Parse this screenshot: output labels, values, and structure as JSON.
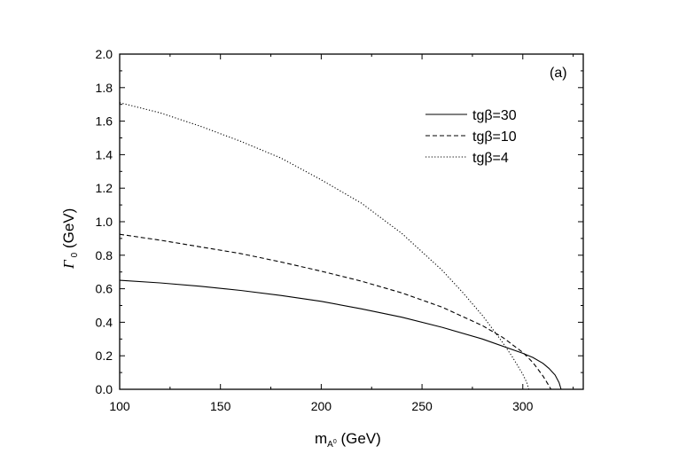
{
  "chart_data": {
    "type": "line",
    "panel_label": "(a)",
    "xlabel": {
      "main": "m",
      "subscript": "A",
      "superscript": "0",
      "unit": " (GeV)"
    },
    "ylabel": {
      "main": "Γ",
      "subscript": "0",
      "unit": " (GeV)"
    },
    "xlim": [
      100,
      330
    ],
    "ylim": [
      0.0,
      2.0
    ],
    "x_ticks": [
      100,
      150,
      200,
      250,
      300
    ],
    "x_tick_labels": [
      "100",
      "150",
      "200",
      "250",
      "300"
    ],
    "y_ticks": [
      0.0,
      0.2,
      0.4,
      0.6,
      0.8,
      1.0,
      1.2,
      1.4,
      1.6,
      1.8,
      2.0
    ],
    "y_tick_labels": [
      "0.0",
      "0.2",
      "0.4",
      "0.6",
      "0.8",
      "1.0",
      "1.2",
      "1.4",
      "1.6",
      "1.8",
      "2.0"
    ],
    "grid": false,
    "legend_position": "top-right",
    "series": [
      {
        "name": "tgβ=30",
        "style": "solid",
        "x": [
          100,
          120,
          140,
          160,
          180,
          200,
          220,
          240,
          260,
          280,
          300,
          305,
          310,
          313,
          316,
          318,
          319
        ],
        "y": [
          0.65,
          0.635,
          0.615,
          0.59,
          0.56,
          0.525,
          0.48,
          0.43,
          0.37,
          0.3,
          0.215,
          0.19,
          0.155,
          0.125,
          0.085,
          0.04,
          0.0
        ]
      },
      {
        "name": "tgβ=10",
        "style": "dashed",
        "x": [
          100,
          120,
          140,
          160,
          180,
          200,
          220,
          240,
          260,
          280,
          290,
          300,
          305,
          310,
          312,
          314
        ],
        "y": [
          0.925,
          0.89,
          0.85,
          0.81,
          0.76,
          0.705,
          0.645,
          0.575,
          0.49,
          0.38,
          0.31,
          0.22,
          0.16,
          0.08,
          0.04,
          0.0
        ]
      },
      {
        "name": "tgβ=4",
        "style": "dotted",
        "x": [
          100,
          120,
          140,
          160,
          180,
          200,
          220,
          240,
          260,
          270,
          280,
          290,
          295,
          300,
          302,
          303
        ],
        "y": [
          1.71,
          1.65,
          1.57,
          1.48,
          1.38,
          1.25,
          1.11,
          0.93,
          0.71,
          0.58,
          0.44,
          0.28,
          0.19,
          0.09,
          0.04,
          0.0
        ]
      }
    ]
  }
}
